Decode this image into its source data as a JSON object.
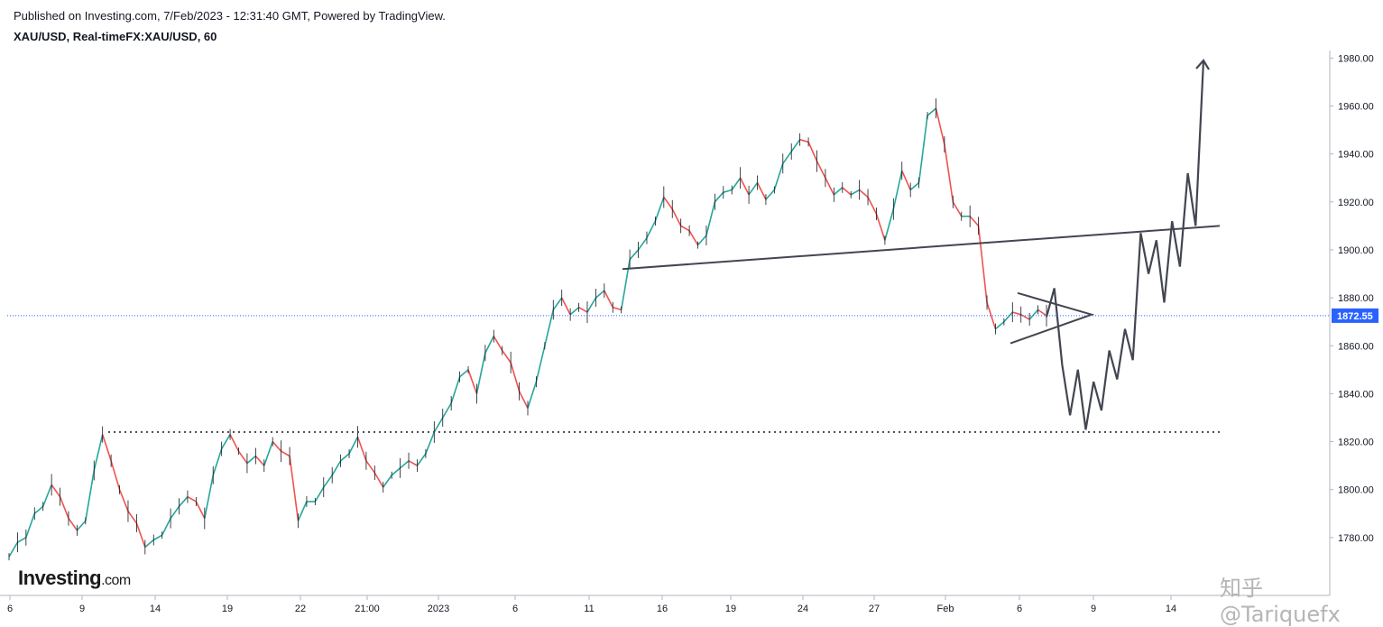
{
  "header": {
    "publish_line": "Published on Investing.com, 7/Feb/2023 - 12:31:40 GMT, Powered by TradingView.",
    "symbol_line": "XAU/USD, Real-timeFX:XAU/USD, 60"
  },
  "logo": {
    "main": "Investing",
    "suffix": ".com"
  },
  "watermark": "知乎 @Tariquefx",
  "colors": {
    "up": "#26a69a",
    "down": "#ef5350",
    "drawing": "#434651",
    "price_line": "#2962ff",
    "price_label_bg": "#2962ff"
  },
  "chart_data": {
    "type": "line",
    "title": "XAU/USD, Real-timeFX:XAU/USD, 60",
    "ylim": [
      1760,
      1985
    ],
    "y_ticks": [
      "1780.00",
      "1800.00",
      "1820.00",
      "1840.00",
      "1860.00",
      "1880.00",
      "1900.00",
      "1920.00",
      "1940.00",
      "1960.00",
      "1980.00"
    ],
    "x_ticks": [
      "6",
      "9",
      "14",
      "19",
      "22",
      "21:00",
      "2023",
      "6",
      "11",
      "16",
      "19",
      "24",
      "27",
      "Feb",
      "6",
      "9",
      "14"
    ],
    "current_price": "1872.55",
    "series": [
      {
        "values": [
          1772,
          1778,
          1780,
          1790,
          1793,
          1802,
          1797,
          1788,
          1783,
          1787,
          1808,
          1823,
          1812,
          1800,
          1791,
          1786,
          1776,
          1779,
          1781,
          1788,
          1793,
          1797,
          1795,
          1788,
          1806,
          1817,
          1823,
          1816,
          1811,
          1814,
          1810,
          1820,
          1816,
          1814,
          1787,
          1795,
          1795,
          1801,
          1806,
          1812,
          1815,
          1822,
          1812,
          1807,
          1801,
          1806,
          1809,
          1812,
          1810,
          1815,
          1824,
          1830,
          1836,
          1847,
          1850,
          1840,
          1857,
          1864,
          1858,
          1853,
          1841,
          1834,
          1845,
          1860,
          1875,
          1880,
          1873,
          1876,
          1874,
          1880,
          1883,
          1876,
          1875,
          1896,
          1900,
          1905,
          1912,
          1922,
          1917,
          1910,
          1908,
          1902,
          1906,
          1920,
          1924,
          1925,
          1930,
          1923,
          1928,
          1921,
          1925,
          1936,
          1941,
          1946,
          1945,
          1937,
          1930,
          1923,
          1926,
          1923,
          1925,
          1922,
          1915,
          1904,
          1917,
          1933,
          1925,
          1928,
          1956,
          1959,
          1944,
          1920,
          1914,
          1914,
          1910,
          1878,
          1867,
          1870,
          1874,
          1873,
          1871,
          1875,
          1872.55
        ]
      }
    ],
    "drawings": {
      "support_level": 1824,
      "trendline": [
        [
          0,
          1892
        ],
        [
          1,
          1910
        ]
      ],
      "triangle": {
        "upper": [
          1882,
          1873
        ],
        "lower": [
          1861,
          1872
        ]
      },
      "projection": [
        1872,
        1884,
        1852,
        1831,
        1850,
        1825,
        1845,
        1833,
        1858,
        1846,
        1867,
        1854,
        1907,
        1890,
        1904,
        1878,
        1912,
        1893,
        1932,
        1910,
        1979
      ]
    }
  }
}
